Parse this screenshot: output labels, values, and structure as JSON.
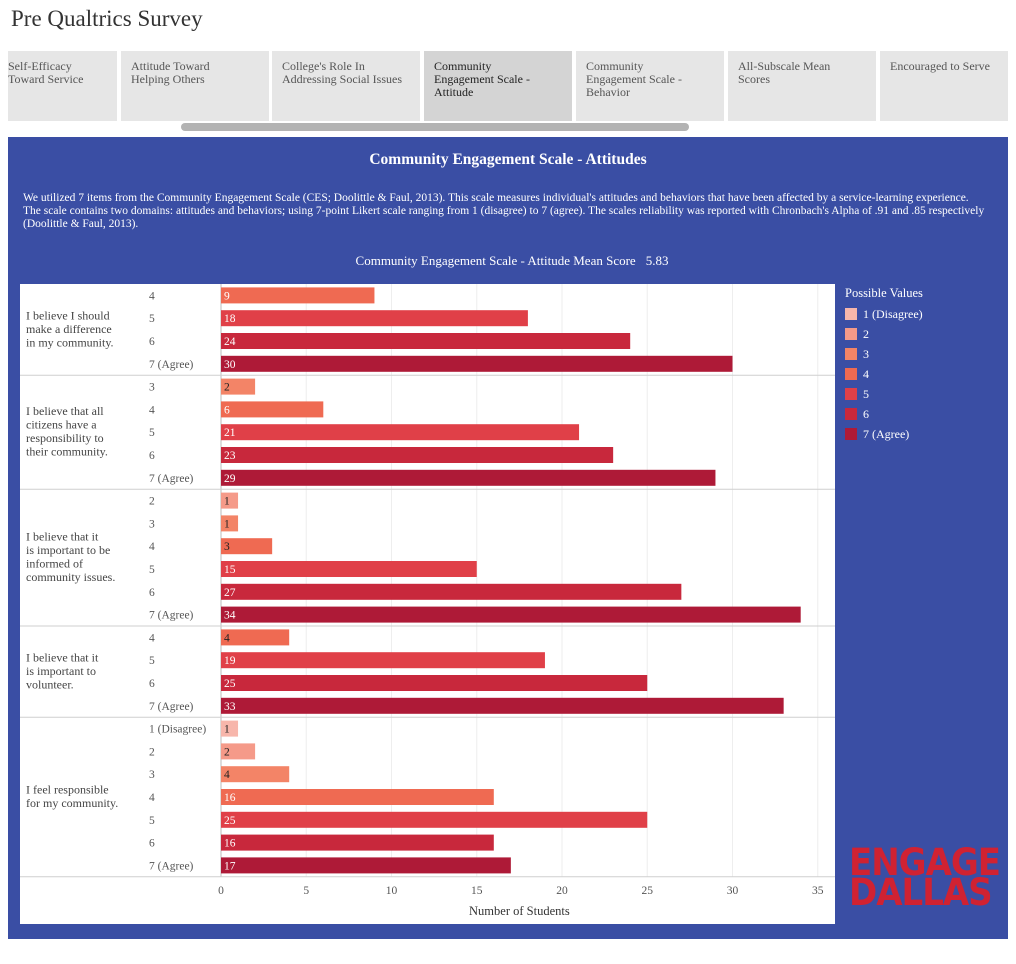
{
  "page_title": "Pre Qualtrics Survey",
  "tabs": [
    {
      "lines": [
        "Self-Efficacy",
        "Toward Service"
      ],
      "active": false
    },
    {
      "lines": [
        "Attitude Toward",
        "Helping Others"
      ],
      "active": false
    },
    {
      "lines": [
        "College's Role In",
        "Addressing Social Issues"
      ],
      "active": false
    },
    {
      "lines": [
        "Community",
        "Engagement Scale -",
        "Attitude"
      ],
      "active": true
    },
    {
      "lines": [
        "Community",
        "Engagement Scale -",
        "Behavior"
      ],
      "active": false
    },
    {
      "lines": [
        "All-Subscale Mean",
        "Scores"
      ],
      "active": false
    },
    {
      "lines": [
        "Encouraged to Serve"
      ],
      "active": false
    }
  ],
  "panel": {
    "title": "Community Engagement Scale - Attitudes",
    "description": "We utilized 7 items from the Community Engagement Scale (CES; Doolittle & Faul, 2013). This scale measures individual's attitudes and behaviors that have been affected by a service-learning experience. The scale contains two domains: attitudes and behaviors; using 7-point Likert scale ranging from 1 (disagree) to 7 (agree). The scales reliability was reported with Chronbach's Alpha of .91 and .85 respectively (Doolittle & Faul, 2013).",
    "mean_label": "Community Engagement Scale - Attitude Mean Score",
    "mean_value": "5.83"
  },
  "legend": {
    "title": "Possible Values",
    "items": [
      {
        "label": "1 (Disagree)",
        "color": "#f7b6ab"
      },
      {
        "label": "2",
        "color": "#f59a89"
      },
      {
        "label": "3",
        "color": "#f38467"
      },
      {
        "label": "4",
        "color": "#ef6a52"
      },
      {
        "label": "5",
        "color": "#e04048"
      },
      {
        "label": "6",
        "color": "#c8283c"
      },
      {
        "label": "7 (Agree)",
        "color": "#ae1a37"
      }
    ]
  },
  "logo": {
    "line1": "ENGAGE",
    "line2": "DALLAS"
  },
  "chart_data": {
    "type": "bar",
    "orientation": "horizontal",
    "xlabel": "Number of Students",
    "xlim": [
      0,
      35
    ],
    "xticks": [
      0,
      5,
      10,
      15,
      20,
      25,
      30,
      35
    ],
    "grid": true,
    "legend_position": "right",
    "groups": [
      {
        "question": "I believe I should make a difference in my community.",
        "bars": [
          {
            "value_label": "4",
            "count": 9
          },
          {
            "value_label": "5",
            "count": 18
          },
          {
            "value_label": "6",
            "count": 24
          },
          {
            "value_label": "7 (Agree)",
            "count": 30
          }
        ]
      },
      {
        "question": "I believe that all citizens have a responsibility to their community.",
        "bars": [
          {
            "value_label": "3",
            "count": 2
          },
          {
            "value_label": "4",
            "count": 6
          },
          {
            "value_label": "5",
            "count": 21
          },
          {
            "value_label": "6",
            "count": 23
          },
          {
            "value_label": "7 (Agree)",
            "count": 29
          }
        ]
      },
      {
        "question": "I believe that it is important to be informed of community issues.",
        "bars": [
          {
            "value_label": "2",
            "count": 1
          },
          {
            "value_label": "3",
            "count": 1
          },
          {
            "value_label": "4",
            "count": 3
          },
          {
            "value_label": "5",
            "count": 15
          },
          {
            "value_label": "6",
            "count": 27
          },
          {
            "value_label": "7 (Agree)",
            "count": 34
          }
        ]
      },
      {
        "question": "I believe that it is important to volunteer.",
        "bars": [
          {
            "value_label": "4",
            "count": 4
          },
          {
            "value_label": "5",
            "count": 19
          },
          {
            "value_label": "6",
            "count": 25
          },
          {
            "value_label": "7 (Agree)",
            "count": 33
          }
        ]
      },
      {
        "question": "I feel responsible for my community.",
        "bars": [
          {
            "value_label": "1 (Disagree)",
            "count": 1
          },
          {
            "value_label": "2",
            "count": 2
          },
          {
            "value_label": "3",
            "count": 4
          },
          {
            "value_label": "4",
            "count": 16
          },
          {
            "value_label": "5",
            "count": 25
          },
          {
            "value_label": "6",
            "count": 16
          },
          {
            "value_label": "7 (Agree)",
            "count": 17
          }
        ]
      }
    ]
  }
}
